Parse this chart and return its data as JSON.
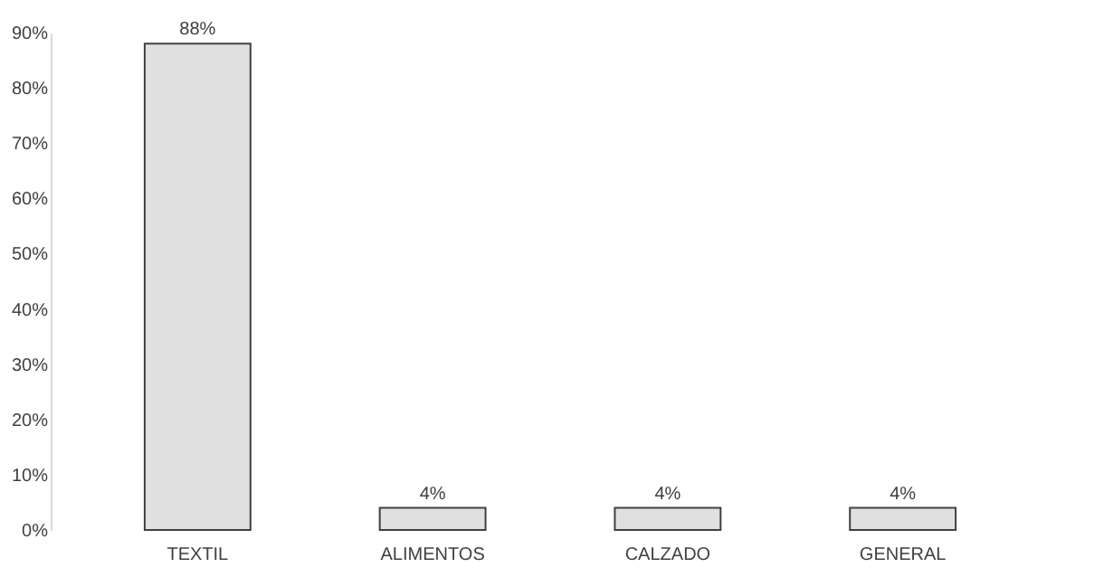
{
  "chart_data": {
    "type": "bar",
    "categories": [
      "TEXTIL",
      "ALIMENTOS",
      "CALZADO",
      "GENERAL"
    ],
    "values": [
      88,
      4,
      4,
      4
    ],
    "color": "#e0e0e0",
    "value_labels": [
      "88%",
      "4%",
      "4%",
      "4%"
    ],
    "ylim": [
      0,
      90
    ],
    "yticks": [
      {
        "value": 0,
        "label": "0%"
      },
      {
        "value": 10,
        "label": "10%"
      },
      {
        "value": 20,
        "label": "20%"
      },
      {
        "value": 30,
        "label": "30%"
      },
      {
        "value": 40,
        "label": "40%"
      },
      {
        "value": 50,
        "label": "50%"
      },
      {
        "value": 60,
        "label": "60%"
      },
      {
        "value": 70,
        "label": "70%"
      },
      {
        "value": 80,
        "label": "80%"
      },
      {
        "value": 90,
        "label": "90%"
      }
    ],
    "grid": false
  }
}
